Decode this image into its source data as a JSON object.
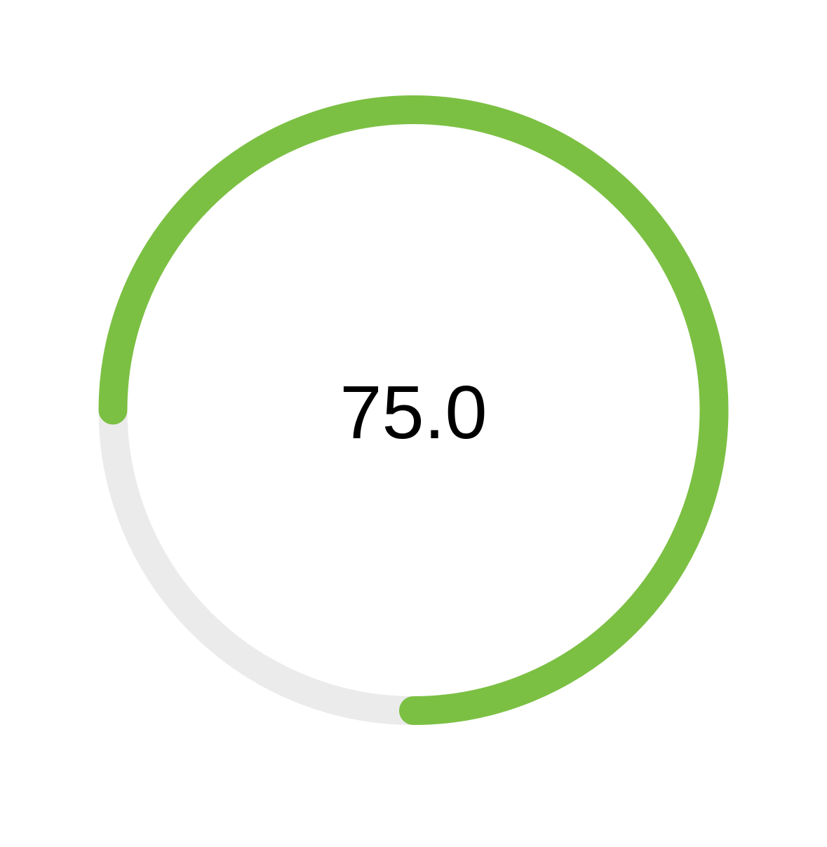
{
  "gauge": {
    "value": 75.0,
    "max": 100,
    "display_value": "75.0",
    "colors": {
      "progress": "#7cc043",
      "track": "#ebebeb",
      "text": "#000000",
      "background": "#ffffff"
    }
  }
}
